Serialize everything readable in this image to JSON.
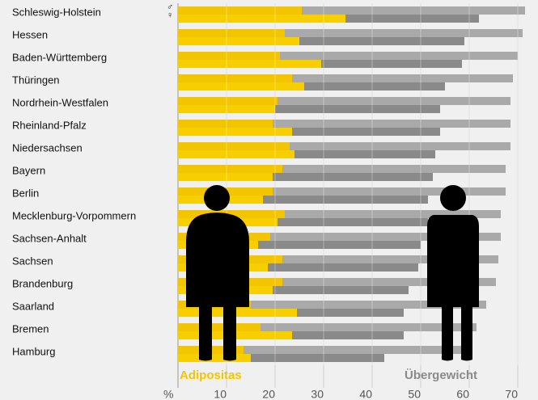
{
  "chart_data": {
    "type": "bar",
    "orientation": "horizontal",
    "categories": [
      "Schleswig-Holstein",
      "Hessen",
      "Baden-Württemberg",
      "Thüringen",
      "Nordrhein-Westfalen",
      "Rheinland-Pfalz",
      "Niedersachsen",
      "Bayern",
      "Berlin",
      "Mecklenburg-Vorpommern",
      "Sachsen-Anhalt",
      "Sachsen",
      "Brandenburg",
      "Saarland",
      "Bremen",
      "Hamburg"
    ],
    "sex_symbols": [
      "♂",
      "♀"
    ],
    "series": [
      {
        "name": "Übergewicht",
        "colors": [
          "#a9a9a9",
          "#8a8a8a"
        ],
        "male": [
          71.5,
          71,
          70,
          69,
          68.5,
          68.5,
          68.5,
          67.5,
          67.5,
          66.5,
          66.5,
          66,
          65.5,
          63.5,
          61.5,
          60
        ],
        "female": [
          62,
          59,
          58.5,
          55,
          54,
          54,
          53,
          52.5,
          51.5,
          51.5,
          50,
          49.5,
          47.5,
          46.5,
          46.5,
          42.5
        ]
      },
      {
        "name": "Adipositas",
        "colors": [
          "#f2c500",
          "#f7cf00"
        ],
        "male": [
          25.5,
          22,
          21,
          23.5,
          20.5,
          19.5,
          23,
          21.5,
          19.5,
          22,
          19,
          21.5,
          21.5,
          15,
          17,
          13.5
        ],
        "female": [
          34.5,
          25,
          29.5,
          26,
          20,
          23.5,
          24,
          19.5,
          17.5,
          20.5,
          16.5,
          18.5,
          19.5,
          24.5,
          23.5,
          15
        ]
      }
    ],
    "x_label": "%",
    "xlim": [
      0,
      70
    ],
    "xticks": [
      10,
      20,
      30,
      40,
      50,
      60,
      70
    ],
    "grid": true
  }
}
